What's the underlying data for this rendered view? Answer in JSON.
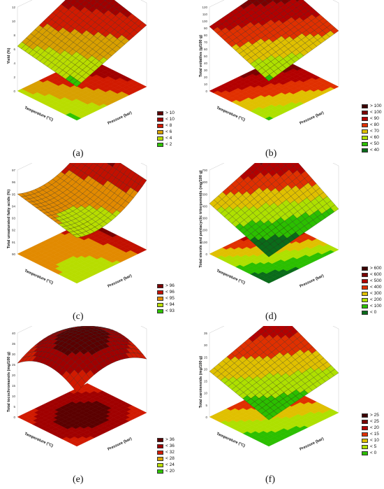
{
  "panels": [
    {
      "caption": "(a)",
      "zlabel": "Yield (%)",
      "ztick_labels": [
        "0",
        "2",
        "4",
        "6",
        "8",
        "10",
        "12"
      ],
      "xlabel": "Pressure (bar)",
      "ylabel": "Temperature (°C)",
      "legend": [
        {
          "label": "> 10",
          "color": "#5b0000"
        },
        {
          "label": "< 10",
          "color": "#a00000"
        },
        {
          "label": "< 8",
          "color": "#d11a00"
        },
        {
          "label": "< 6",
          "color": "#d8a000"
        },
        {
          "label": "< 4",
          "color": "#b9dd00"
        },
        {
          "label": "< 2",
          "color": "#2ec400"
        }
      ]
    },
    {
      "caption": "(b)",
      "zlabel": "Total volatiles (g/100 g)",
      "ztick_labels": [
        "0",
        "10",
        "20",
        "30",
        "40",
        "50",
        "60",
        "70",
        "80",
        "90",
        "100",
        "110",
        "120"
      ],
      "xlabel": "Pressure (bar)",
      "ylabel": "Temperature (°C)",
      "legend": [
        {
          "label": "> 100",
          "color": "#3d0000"
        },
        {
          "label": "< 100",
          "color": "#7a0000"
        },
        {
          "label": "< 90",
          "color": "#b30000"
        },
        {
          "label": "< 80",
          "color": "#e03000"
        },
        {
          "label": "< 70",
          "color": "#e0c000"
        },
        {
          "label": "< 60",
          "color": "#aee000"
        },
        {
          "label": "< 50",
          "color": "#2bbf00"
        },
        {
          "label": "< 40",
          "color": "#0a6b1a"
        }
      ]
    },
    {
      "caption": "(c)",
      "zlabel": "Total unsaturated fatty acids (%)",
      "ztick_labels": [
        "90",
        "91",
        "92",
        "93",
        "94",
        "95",
        "96",
        "97"
      ],
      "xlabel": "Pressure (bar)",
      "ylabel": "Temperature (°C)",
      "legend": [
        {
          "label": "> 96",
          "color": "#7a0000"
        },
        {
          "label": "< 96",
          "color": "#c21000"
        },
        {
          "label": "< 95",
          "color": "#e28a00"
        },
        {
          "label": "< 94",
          "color": "#b7dd00"
        },
        {
          "label": "< 93",
          "color": "#2ec400"
        }
      ]
    },
    {
      "caption": "(d)",
      "zlabel": "Total sterols and pentacyclic triterpenoids (mg/100 g)",
      "ztick_labels": [
        "0",
        "100",
        "200",
        "300",
        "400",
        "500",
        "600",
        "700"
      ],
      "xlabel": "Pressure (bar)",
      "ylabel": "Temperature (°C)",
      "legend": [
        {
          "label": "> 600",
          "color": "#3d0000"
        },
        {
          "label": "< 600",
          "color": "#7a0000"
        },
        {
          "label": "< 500",
          "color": "#b30000"
        },
        {
          "label": "< 400",
          "color": "#e03000"
        },
        {
          "label": "< 300",
          "color": "#e0c000"
        },
        {
          "label": "< 200",
          "color": "#aee000"
        },
        {
          "label": "< 100",
          "color": "#2bbf00"
        },
        {
          "label": "< 0",
          "color": "#0a6b1a"
        }
      ]
    },
    {
      "caption": "(e)",
      "zlabel": "Total tocochromanols (mg/100 g)",
      "ztick_labels": [
        "0",
        "5",
        "10",
        "15",
        "20",
        "25",
        "30",
        "35",
        "40"
      ],
      "xlabel": "Pressure (bar)",
      "ylabel": "Temperature (°C)",
      "legend": [
        {
          "label": "> 36",
          "color": "#5b0000"
        },
        {
          "label": "< 36",
          "color": "#a00000"
        },
        {
          "label": "< 32",
          "color": "#d11a00"
        },
        {
          "label": "< 28",
          "color": "#d8a000"
        },
        {
          "label": "< 24",
          "color": "#b9dd00"
        },
        {
          "label": "< 20",
          "color": "#2ec400"
        }
      ]
    },
    {
      "caption": "(f)",
      "zlabel": "Total carotenoids (mg/100 g)",
      "ztick_labels": [
        "0",
        "5",
        "10",
        "15",
        "20",
        "25",
        "30",
        "35"
      ],
      "xlabel": "Pressure (bar)",
      "ylabel": "Temperature (°C)",
      "legend": [
        {
          "label": "> 25",
          "color": "#3d0000"
        },
        {
          "label": "< 25",
          "color": "#7a0000"
        },
        {
          "label": "< 20",
          "color": "#b30000"
        },
        {
          "label": "< 15",
          "color": "#e03000"
        },
        {
          "label": "< 10",
          "color": "#e0c000"
        },
        {
          "label": "< 5",
          "color": "#aee000"
        },
        {
          "label": "< 0",
          "color": "#2bbf00"
        }
      ]
    }
  ],
  "chart_data": [
    {
      "type": "surface",
      "xlabel": "Pressure (bar)",
      "ylabel": "Temperature (°C)",
      "zlabel": "Yield (%)",
      "xlim": [
        150,
        450
      ],
      "ylim": [
        40,
        60
      ],
      "zlim": [
        0,
        12
      ],
      "surface": {
        "model": "quadratic",
        "z_pmin_tmin": 3,
        "z_pmax_tmin": 8,
        "z_pmin_tmax": 5,
        "z_pmax_tmax": 11
      }
    },
    {
      "type": "surface",
      "xlabel": "Pressure (bar)",
      "ylabel": "Temperature (°C)",
      "zlabel": "Total volatiles (g/100 g)",
      "xlim": [
        150,
        450
      ],
      "ylim": [
        40,
        60
      ],
      "zlim": [
        0,
        120
      ],
      "surface": {
        "model": "quadratic",
        "z_pmin_tmin": 40,
        "z_pmax_tmin": 70,
        "z_pmin_tmax": 85,
        "z_pmax_tmax": 110
      }
    },
    {
      "type": "surface",
      "xlabel": "Pressure (bar)",
      "ylabel": "Temperature (°C)",
      "zlabel": "Total unsaturated fatty acids (%)",
      "xlim": [
        150,
        450
      ],
      "ylim": [
        40,
        60
      ],
      "zlim": [
        90,
        97
      ],
      "surface": {
        "model": "saddle",
        "z_pmin_tmin": 93,
        "z_pmax_tmin": 95.5,
        "z_pmin_tmax": 94.5,
        "z_pmax_tmax": 96.5
      }
    },
    {
      "type": "surface",
      "xlabel": "Pressure (bar)",
      "ylabel": "Temperature (°C)",
      "zlabel": "Total sterols and pentacyclic triterpenoids (mg/100 g)",
      "xlim": [
        150,
        450
      ],
      "ylim": [
        40,
        60
      ],
      "zlim": [
        0,
        700
      ],
      "surface": {
        "model": "quadratic",
        "z_pmin_tmin": 100,
        "z_pmax_tmin": 250,
        "z_pmin_tmax": 350,
        "z_pmax_tmax": 650
      }
    },
    {
      "type": "surface",
      "xlabel": "Pressure (bar)",
      "ylabel": "Temperature (°C)",
      "zlabel": "Total tocochromanols (mg/100 g)",
      "xlim": [
        150,
        450
      ],
      "ylim": [
        40,
        60
      ],
      "zlim": [
        0,
        40
      ],
      "surface": {
        "model": "dome",
        "z_center": 37,
        "z_corners": 22
      }
    },
    {
      "type": "surface",
      "xlabel": "Pressure (bar)",
      "ylabel": "Temperature (°C)",
      "zlabel": "Total carotenoids (mg/100 g)",
      "xlim": [
        150,
        450
      ],
      "ylim": [
        40,
        60
      ],
      "zlim": [
        0,
        35
      ],
      "surface": {
        "model": "quadratic",
        "z_pmin_tmin": 5,
        "z_pmax_tmin": 12,
        "z_pmin_tmax": 15,
        "z_pmax_tmax": 28
      }
    }
  ]
}
